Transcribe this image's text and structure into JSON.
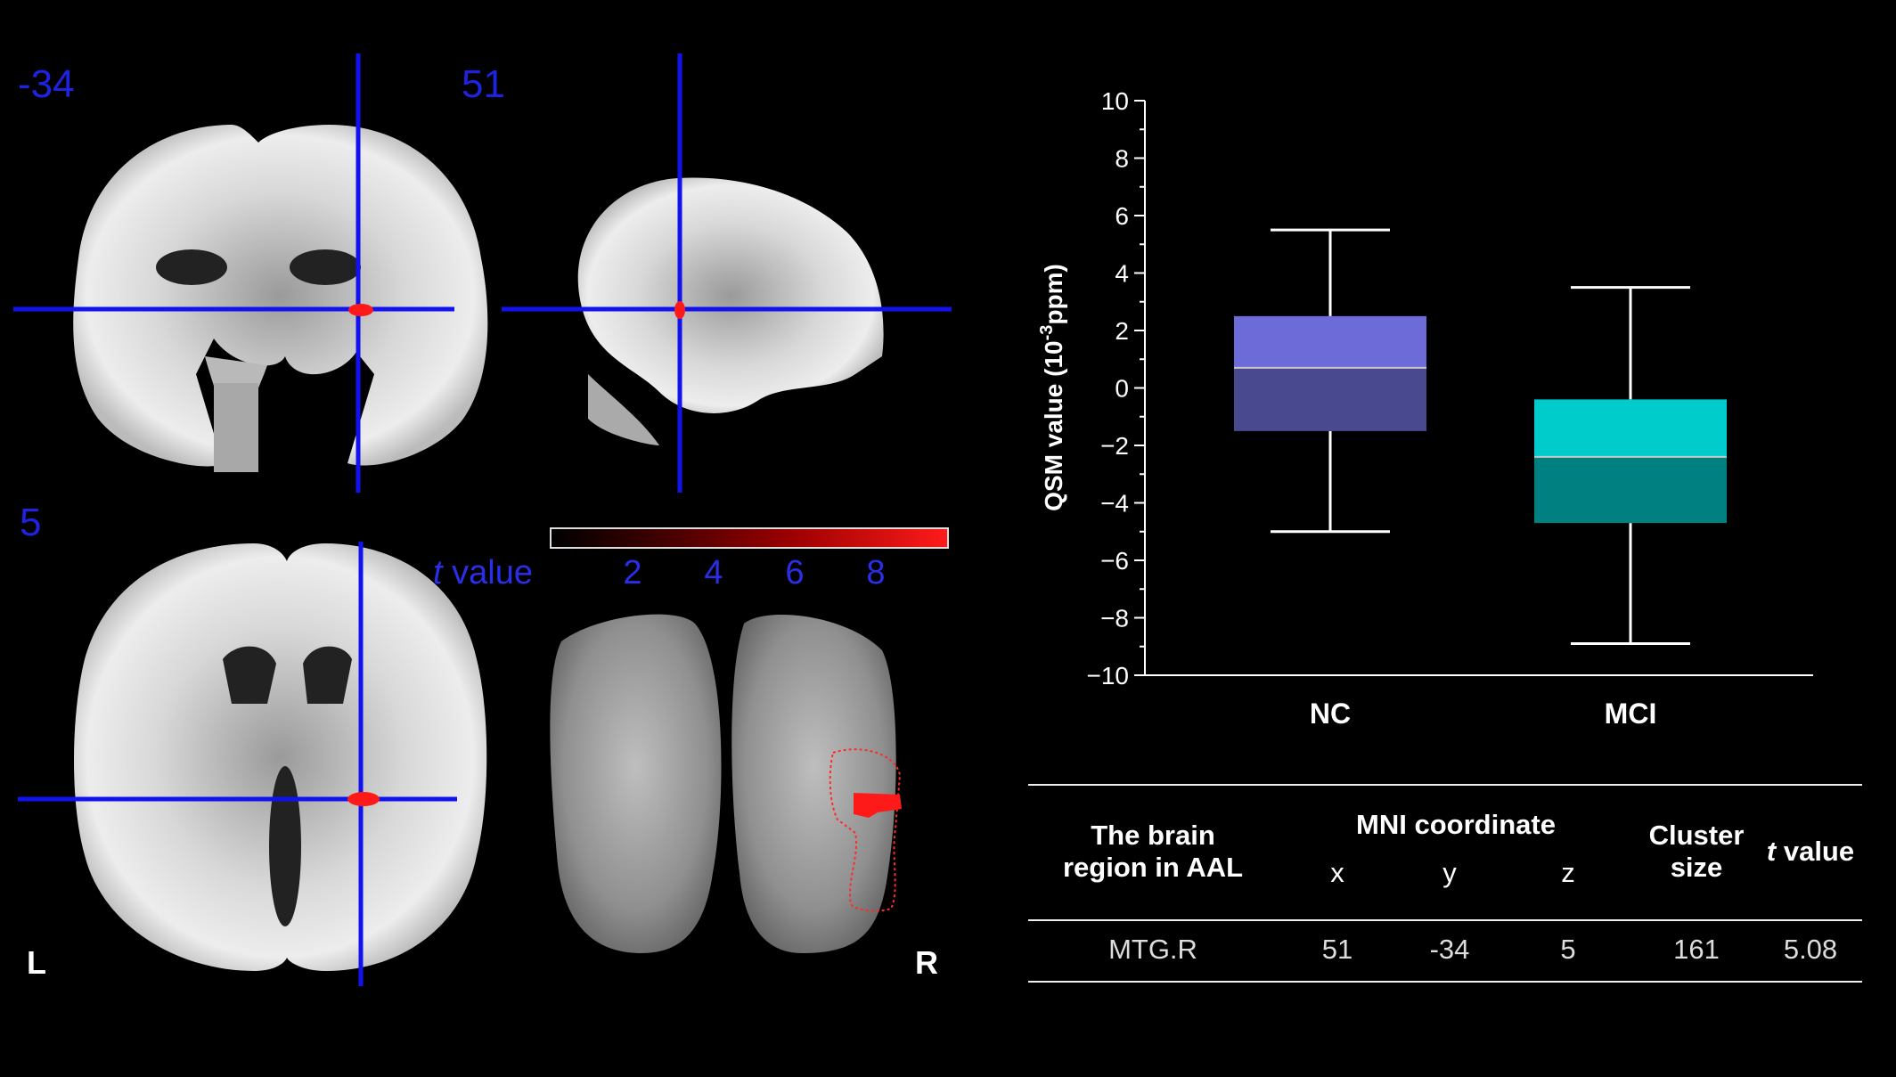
{
  "brain_panels": {
    "coronal_slice": "-34",
    "sagittal_slice": "51",
    "axial_slice": "5",
    "left_label": "L",
    "right_label": "R",
    "colorbar": {
      "label_prefix": "t",
      "label_suffix": " value",
      "ticks": [
        "2",
        "4",
        "6",
        "8"
      ],
      "range": [
        0,
        10
      ],
      "colors": [
        "#000000",
        "#3a0000",
        "#9a0000",
        "#ff1a1a"
      ]
    },
    "crosshair_color": "#1212ee",
    "cluster_color": "#ff1a1a"
  },
  "chart_data": {
    "type": "boxplot",
    "categories": [
      "NC",
      "MCI"
    ],
    "ylabel": "QSM value (10-3ppm)",
    "ylabel_parts": {
      "before": "QSM value (10",
      "sup": "-3",
      "after": "ppm)"
    },
    "ylim": [
      -10,
      10
    ],
    "yticks": [
      10,
      8,
      6,
      4,
      2,
      0,
      -2,
      -4,
      -6,
      -8,
      -10
    ],
    "ytick_labels": [
      "10",
      "8",
      "6",
      "4",
      "2",
      "0",
      "−2",
      "−4",
      "−6",
      "−8",
      "−10"
    ],
    "boxes": [
      {
        "name": "NC",
        "min": -5.0,
        "q1": -1.5,
        "median": 0.7,
        "q3": 2.5,
        "max": 5.5,
        "color_upper": "#6d6bd8",
        "color_lower": "#494990"
      },
      {
        "name": "MCI",
        "min": -8.9,
        "q1": -4.7,
        "median": -2.4,
        "q3": -0.4,
        "max": 3.5,
        "color_upper": "#00cccc",
        "color_lower": "#008080"
      }
    ]
  },
  "table": {
    "headers": {
      "region": [
        "The brain",
        "region in AAL"
      ],
      "mni": "MNI coordinate",
      "x": "x",
      "y": "y",
      "z": "z",
      "cluster": [
        "Cluster",
        "size"
      ],
      "tvalue_prefix": "t",
      "tvalue_suffix": " value"
    },
    "rows": [
      {
        "region": "MTG.R",
        "x": "51",
        "y": "-34",
        "z": "5",
        "cluster": "161",
        "t": "5.08"
      }
    ]
  }
}
